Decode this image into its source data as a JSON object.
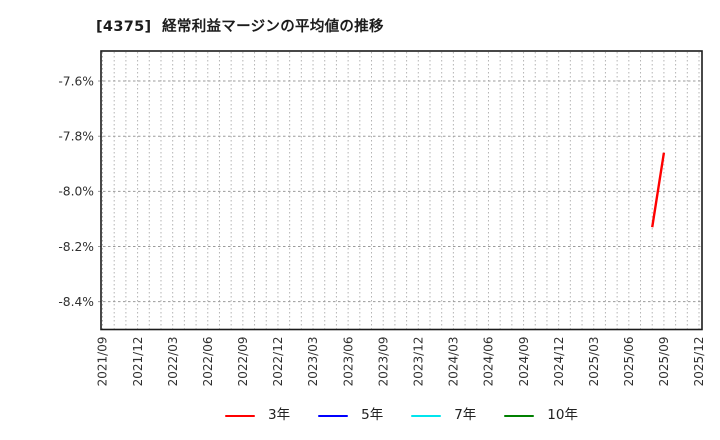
{
  "header": {
    "title": "[4375]  経常利益マージンの平均値の推移"
  },
  "chart_data": {
    "type": "line",
    "title": "[4375]  経常利益マージンの平均値の推移",
    "x_axis": {
      "tick_labels": [
        "2021/09",
        "2021/12",
        "2022/03",
        "2022/06",
        "2022/09",
        "2022/12",
        "2023/03",
        "2023/06",
        "2023/09",
        "2023/12",
        "2024/03",
        "2024/06",
        "2024/09",
        "2024/12",
        "2025/03",
        "2025/06",
        "2025/09",
        "2025/12"
      ],
      "months_per_tick": 3,
      "total_months": 51,
      "start": "2021/09",
      "end": "2025/12"
    },
    "y_axis": {
      "tick_values": [
        -7.6,
        -7.8,
        -8.0,
        -8.2,
        -8.4
      ],
      "tick_labels": [
        "-7.6%",
        "-7.8%",
        "-8.0%",
        "-8.2%",
        "-8.4%"
      ],
      "ylim": [
        -8.501,
        -7.491
      ],
      "unit": "%"
    },
    "grid": {
      "vertical": "monthly-dotted",
      "horizontal": "dotted-at-ticks",
      "vertical_color": "#b4b4b4",
      "horizontal_color": "#9b9b9b",
      "border_color": "#1b1b1b"
    },
    "legend_position": "bottom",
    "series": [
      {
        "name": "3年",
        "color": "#ff0000",
        "points": [
          {
            "month": "2025/08",
            "month_index": 47,
            "value": -8.13
          },
          {
            "month": "2025/09",
            "month_index": 48,
            "value": -7.86
          }
        ]
      },
      {
        "name": "5年",
        "color": "#0000ff",
        "points": []
      },
      {
        "name": "7年",
        "color": "#00e5ee",
        "points": []
      },
      {
        "name": "10年",
        "color": "#008000",
        "points": []
      }
    ]
  }
}
